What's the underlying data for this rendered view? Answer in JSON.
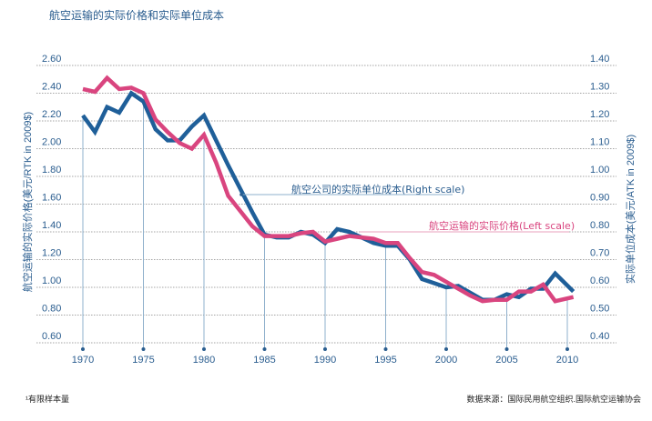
{
  "chart_data": {
    "type": "line",
    "title": "航空运输的实际价格和实际单位成本",
    "xlabel": "",
    "ylabel_left": "航空运输的实际价格(美元/RTK in 2009$)",
    "ylabel_right": "实际单位成本(美元/ATK in 2009$)",
    "x_ticks": [
      1970,
      1975,
      1980,
      1985,
      1990,
      1995,
      2000,
      2005,
      2010
    ],
    "ylim_left": [
      0.6,
      2.6
    ],
    "yticks_left": [
      "0.60",
      "0.80",
      "1.00",
      "1.20",
      "1.40",
      "1.60",
      "1.80",
      "2.00",
      "2.20",
      "2.40",
      "2.60"
    ],
    "ylim_right": [
      0.4,
      1.4
    ],
    "yticks_right": [
      "0.40",
      "0.50",
      "0.60",
      "0.70",
      "0.80",
      "0.90",
      "1.00",
      "1.10",
      "1.20",
      "1.30",
      "1.40"
    ],
    "grid": true,
    "x": [
      1970,
      1971,
      1972,
      1973,
      1974,
      1975,
      1976,
      1977,
      1978,
      1979,
      1980,
      1981,
      1982,
      1983,
      1984,
      1985,
      1986,
      1987,
      1988,
      1989,
      1990,
      1991,
      1992,
      1993,
      1994,
      1995,
      1996,
      1997,
      1998,
      1999,
      2000,
      2001,
      2002,
      2003,
      2004,
      2005,
      2006,
      2007,
      2008,
      2009,
      2010
    ],
    "series": [
      {
        "name": "航空公司的实际单位成本(Right scale)",
        "axis": "right",
        "color": "#1f5f99",
        "values": [
          1.22,
          1.16,
          1.25,
          1.23,
          1.3,
          1.27,
          1.17,
          1.13,
          1.13,
          1.18,
          1.22,
          1.13,
          1.04,
          0.955,
          0.87,
          0.79,
          0.78,
          0.78,
          0.8,
          0.79,
          0.76,
          0.81,
          0.8,
          0.78,
          0.76,
          0.75,
          0.75,
          0.7,
          0.63,
          0.615,
          0.6,
          0.605,
          0.58,
          0.555,
          0.555,
          0.575,
          0.565,
          0.595,
          0.595,
          0.65,
          0.585
        ]
      },
      {
        "name": "航空运输的实际价格(Left scale)",
        "axis": "left",
        "color": "#d9457f",
        "values": [
          2.43,
          2.41,
          2.51,
          2.43,
          2.44,
          2.4,
          2.21,
          2.12,
          2.04,
          2.0,
          2.1,
          1.9,
          1.66,
          1.55,
          1.44,
          1.37,
          1.37,
          1.37,
          1.39,
          1.4,
          1.33,
          1.35,
          1.37,
          1.36,
          1.35,
          1.32,
          1.32,
          1.21,
          1.11,
          1.09,
          1.04,
          0.99,
          0.94,
          0.9,
          0.91,
          0.91,
          0.97,
          0.97,
          1.02,
          0.9,
          0.93
        ]
      }
    ]
  },
  "footnote": "¹有限样本量",
  "source": "数据来源：国际民用航空组织.国际航空运输协会"
}
